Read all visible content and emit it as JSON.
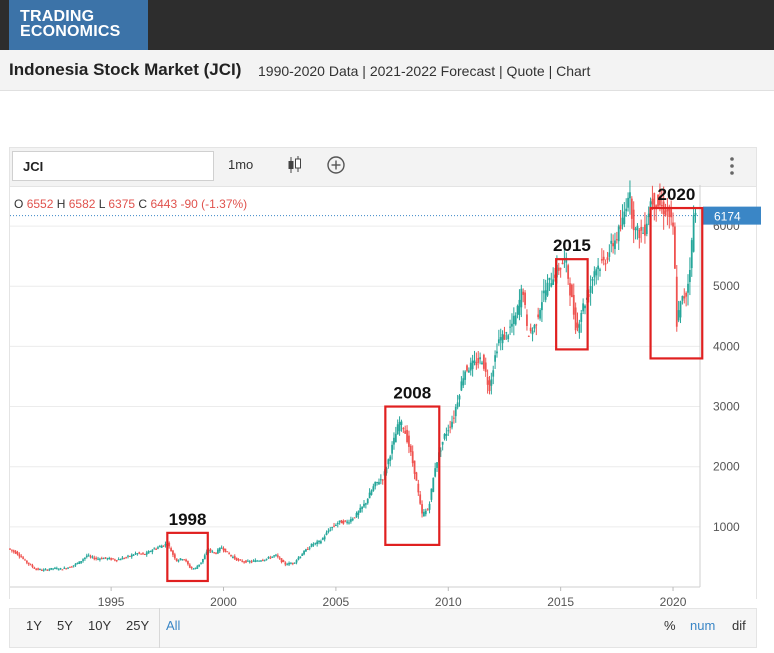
{
  "brand": {
    "line1": "TRADING",
    "line2": "ECONOMICS"
  },
  "page": {
    "title": "Indonesia Stock Market (JCI)",
    "subtitle": "1990-2020 Data | 2021-2022 Forecast | Quote | Chart"
  },
  "toolbar": {
    "symbol": "JCI",
    "interval": "1mo"
  },
  "ohlc": {
    "o_label": "O",
    "o": "6552",
    "h_label": "H",
    "h": "6582",
    "l_label": "L",
    "l": "6375",
    "c_label": "C",
    "c": "6443",
    "change": "-90 (-1.37%)"
  },
  "ranges": [
    {
      "label": "1Y",
      "active": false
    },
    {
      "label": "5Y",
      "active": false
    },
    {
      "label": "10Y",
      "active": false
    },
    {
      "label": "25Y",
      "active": false
    },
    {
      "label": "All",
      "active": true
    }
  ],
  "modes": [
    "%",
    "num",
    "dif"
  ],
  "colors": {
    "up": "#26a69a",
    "down": "#ef5350",
    "highlight_box": "#e02020",
    "price_tag": "#3a86c6"
  },
  "chart_data": {
    "type": "line",
    "title": "",
    "x_ticks": [
      "1995",
      "2000",
      "2005",
      "2010",
      "2015",
      "2020"
    ],
    "y_ticks": [
      "1000",
      "2000",
      "3000",
      "4000",
      "5000",
      "6000"
    ],
    "xlim": [
      1990.5,
      2021.2
    ],
    "ylim": [
      0,
      6600
    ],
    "last_price_label": "6174",
    "series": [
      {
        "values": [
          [
            1990.5,
            640
          ],
          [
            1990.9,
            560
          ],
          [
            1991.3,
            420
          ],
          [
            1991.7,
            300
          ],
          [
            1992.1,
            280
          ],
          [
            1992.5,
            310
          ],
          [
            1992.9,
            300
          ],
          [
            1993.3,
            340
          ],
          [
            1993.7,
            420
          ],
          [
            1994.0,
            520
          ],
          [
            1994.4,
            470
          ],
          [
            1994.8,
            480
          ],
          [
            1995.3,
            450
          ],
          [
            1995.8,
            500
          ],
          [
            1996.2,
            560
          ],
          [
            1996.6,
            540
          ],
          [
            1996.9,
            620
          ],
          [
            1997.3,
            680
          ],
          [
            1997.6,
            720
          ],
          [
            1997.8,
            560
          ],
          [
            1998.0,
            440
          ],
          [
            1998.3,
            480
          ],
          [
            1998.6,
            320
          ],
          [
            1998.8,
            300
          ],
          [
            1999.1,
            420
          ],
          [
            1999.4,
            620
          ],
          [
            1999.7,
            560
          ],
          [
            2000.0,
            660
          ],
          [
            2000.4,
            520
          ],
          [
            2000.8,
            430
          ],
          [
            2001.2,
            420
          ],
          [
            2001.6,
            440
          ],
          [
            2002.0,
            470
          ],
          [
            2002.4,
            530
          ],
          [
            2002.8,
            380
          ],
          [
            2003.2,
            400
          ],
          [
            2003.6,
            560
          ],
          [
            2004.0,
            700
          ],
          [
            2004.4,
            760
          ],
          [
            2004.8,
            960
          ],
          [
            2005.2,
            1080
          ],
          [
            2005.6,
            1080
          ],
          [
            2006.0,
            1200
          ],
          [
            2006.4,
            1400
          ],
          [
            2006.8,
            1700
          ],
          [
            2007.2,
            1830
          ],
          [
            2007.6,
            2350
          ],
          [
            2007.9,
            2740
          ],
          [
            2008.1,
            2650
          ],
          [
            2008.3,
            2400
          ],
          [
            2008.6,
            1900
          ],
          [
            2008.9,
            1200
          ],
          [
            2009.2,
            1300
          ],
          [
            2009.5,
            2000
          ],
          [
            2009.9,
            2500
          ],
          [
            2010.3,
            2800
          ],
          [
            2010.8,
            3600
          ],
          [
            2011.2,
            3700
          ],
          [
            2011.6,
            3800
          ],
          [
            2011.9,
            3300
          ],
          [
            2012.3,
            4100
          ],
          [
            2012.7,
            4200
          ],
          [
            2013.1,
            4500
          ],
          [
            2013.4,
            5000
          ],
          [
            2013.6,
            4200
          ],
          [
            2013.9,
            4300
          ],
          [
            2014.3,
            4850
          ],
          [
            2014.7,
            5150
          ],
          [
            2015.0,
            5300
          ],
          [
            2015.3,
            5450
          ],
          [
            2015.5,
            4950
          ],
          [
            2015.8,
            4250
          ],
          [
            2016.0,
            4600
          ],
          [
            2016.3,
            4850
          ],
          [
            2016.6,
            5300
          ],
          [
            2017.0,
            5400
          ],
          [
            2017.4,
            5700
          ],
          [
            2017.8,
            6000
          ],
          [
            2018.1,
            6600
          ],
          [
            2018.4,
            5900
          ],
          [
            2018.8,
            5900
          ],
          [
            2019.1,
            6450
          ],
          [
            2019.5,
            6350
          ],
          [
            2019.9,
            6200
          ],
          [
            2020.1,
            5900
          ],
          [
            2020.25,
            4400
          ],
          [
            2020.45,
            4750
          ],
          [
            2020.7,
            4900
          ],
          [
            2020.9,
            5600
          ],
          [
            2021.0,
            6174
          ]
        ]
      }
    ],
    "annotations": [
      {
        "label": "1998",
        "x_range": [
          1997.5,
          1999.3
        ],
        "y_range": [
          100,
          900
        ]
      },
      {
        "label": "2008",
        "x_range": [
          2007.2,
          2009.6
        ],
        "y_range": [
          700,
          3000
        ]
      },
      {
        "label": "2015",
        "x_range": [
          2014.8,
          2016.2
        ],
        "y_range": [
          3950,
          5450
        ]
      },
      {
        "label": "2020",
        "x_range": [
          2019.0,
          2021.3
        ],
        "y_range": [
          3800,
          6300
        ]
      }
    ]
  }
}
